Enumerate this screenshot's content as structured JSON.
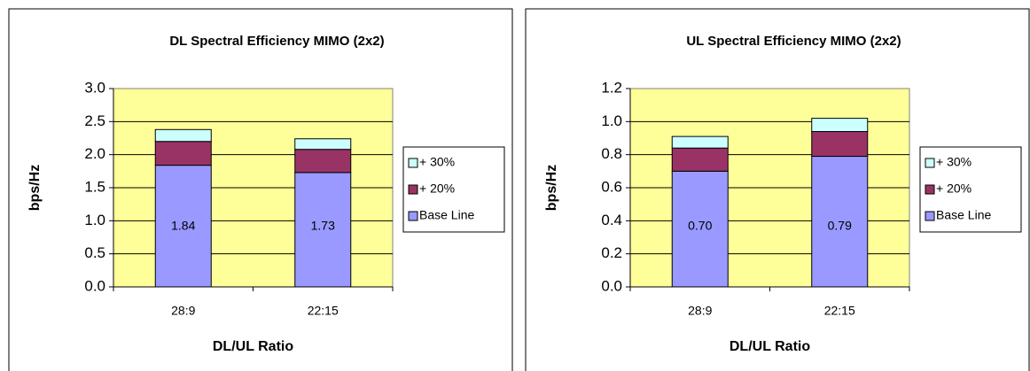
{
  "chart_data": [
    {
      "type": "bar",
      "stacked": true,
      "title": "DL Spectral Efficiency MIMO (2x2)",
      "x_label": "DL/UL Ratio",
      "y_label": "bps/Hz",
      "categories": [
        "28:9",
        "22:15"
      ],
      "series": [
        {
          "name": "Base Line",
          "color": "#9999ff",
          "values": [
            1.84,
            1.73
          ]
        },
        {
          "name": "+ 20%",
          "color": "#993366",
          "values": [
            0.36,
            0.35
          ]
        },
        {
          "name": "+ 30%",
          "color": "#ccffff",
          "values": [
            0.18,
            0.16
          ]
        }
      ],
      "ylim": [
        0,
        3
      ],
      "yticks": [
        {
          "value": 0,
          "label": "0.0"
        },
        0.5,
        {
          "value": 1,
          "label": "1.0"
        },
        1.5,
        {
          "value": 2,
          "label": "2.0"
        },
        2.5,
        {
          "value": 3,
          "label": "3.0"
        }
      ],
      "grid": true,
      "legend": "right"
    },
    {
      "type": "bar",
      "stacked": true,
      "title": "UL Spectral Efficiency MIMO (2x2)",
      "x_label": "DL/UL Ratio",
      "y_label": "bps/Hz",
      "categories": [
        "28:9",
        "22:15"
      ],
      "series": [
        {
          "name": "Base Line",
          "color": "#9999ff",
          "values": [
            0.7,
            0.79
          ],
          "value_labels": [
            "0.70",
            "0.79"
          ]
        },
        {
          "name": "+ 20%",
          "color": "#993366",
          "values": [
            0.14,
            0.15
          ]
        },
        {
          "name": "+ 30%",
          "color": "#ccffff",
          "values": [
            0.07,
            0.08
          ]
        }
      ],
      "ylim": [
        0,
        1.2
      ],
      "yticks": [
        {
          "value": 0,
          "label": "0.0"
        },
        0.2,
        0.4,
        0.6,
        0.8,
        {
          "value": 1,
          "label": "1.0"
        },
        1.2
      ],
      "grid": true,
      "legend": "right"
    }
  ]
}
